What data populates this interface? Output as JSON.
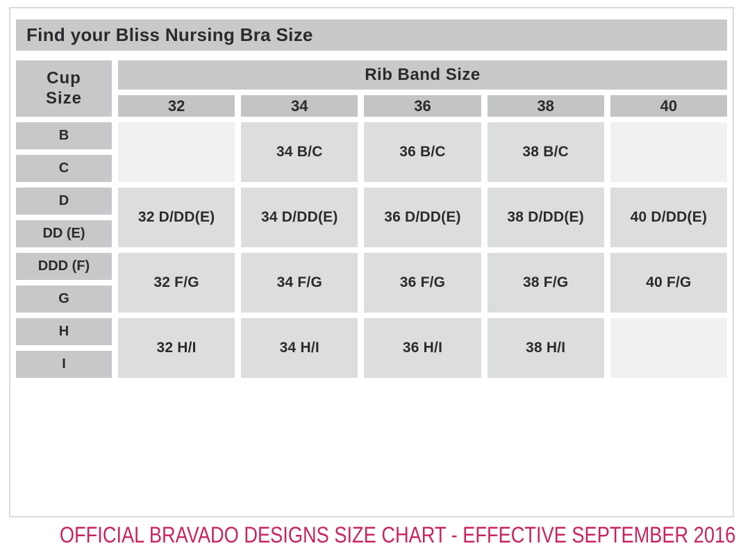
{
  "chart_data": {
    "type": "table",
    "title": "Find your Bliss Nursing Bra Size",
    "row_group_header": "Cup Size",
    "column_group_header": "Rib Band Size",
    "columns": [
      "32",
      "34",
      "36",
      "38",
      "40"
    ],
    "row_labels": [
      "B",
      "C",
      "D",
      "DD (E)",
      "DDD (F)",
      "G",
      "H",
      "I"
    ],
    "body_rows": [
      {
        "cups": [
          "B",
          "C"
        ],
        "cells": [
          "",
          "34 B/C",
          "36 B/C",
          "38 B/C",
          ""
        ]
      },
      {
        "cups": [
          "D",
          "DD (E)"
        ],
        "cells": [
          "32 D/DD(E)",
          "34 D/DD(E)",
          "36 D/DD(E)",
          "38 D/DD(E)",
          "40 D/DD(E)"
        ]
      },
      {
        "cups": [
          "DDD (F)",
          "G"
        ],
        "cells": [
          "32 F/G",
          "34 F/G",
          "36 F/G",
          "38 F/G",
          "40 F/G"
        ]
      },
      {
        "cups": [
          "H",
          "I"
        ],
        "cells": [
          "32 H/I",
          "34 H/I",
          "36 H/I",
          "38 H/I",
          ""
        ]
      }
    ]
  },
  "labels": {
    "cup_line1": "Cup",
    "cup_line2": "Size"
  },
  "footer": {
    "text": "OFFICIAL BRAVADO DESIGNS SIZE CHART - EFFECTIVE SEPTEMBER 2016"
  },
  "colors": {
    "footer_text": "#c72460",
    "title_bar_gray": "#c8c9cb",
    "band_number_gray": "#c2c4c6",
    "cup_label_gray": "#c6c8ca",
    "data_cell_gray": "#dcddde",
    "empty_cell_gray": "#f1f1f2",
    "text_dark": "#2a2b2d",
    "outer_border": "#d9dcd9"
  }
}
